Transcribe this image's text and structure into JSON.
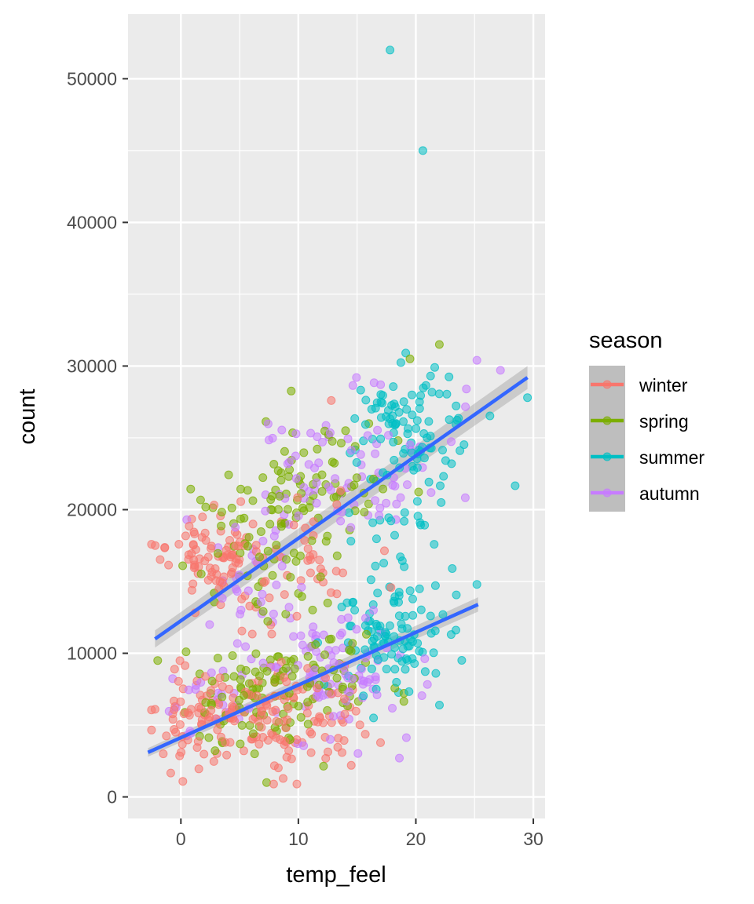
{
  "chart_data": {
    "type": "scatter",
    "xlabel": "temp_feel",
    "ylabel": "count",
    "xlim": [
      -4.5,
      31
    ],
    "ylim": [
      -1500,
      54500
    ],
    "x_ticks": [
      0,
      10,
      20,
      30
    ],
    "y_ticks": [
      0,
      10000,
      20000,
      30000,
      40000,
      50000
    ],
    "x_tick_labels": [
      "0",
      "10",
      "20",
      "30"
    ],
    "y_tick_labels": [
      "0",
      "10000",
      "20000",
      "30000",
      "40000",
      "50000"
    ],
    "grid": true,
    "legend": {
      "title": "season",
      "placement": "right",
      "entries": [
        "winter",
        "spring",
        "summer",
        "autumn"
      ]
    },
    "colors": {
      "winter": "#F8766D",
      "spring": "#7CAE00",
      "summer": "#00BFC4",
      "autumn": "#C77CFF",
      "trend": "#3366FF",
      "panel": "#EBEBEB",
      "band": "#999999"
    },
    "series": [
      {
        "name": "winter",
        "clusters": [
          {
            "cx": 2.5,
            "cy": 17000,
            "sx": 2.0,
            "sy": 1400,
            "n": 75
          },
          {
            "cx": 4.0,
            "cy": 6000,
            "sx": 3.3,
            "sy": 1900,
            "n": 125
          },
          {
            "cx": 11.5,
            "cy": 5200,
            "sx": 2.8,
            "sy": 1900,
            "n": 60
          },
          {
            "cx": 9.5,
            "cy": 16000,
            "sx": 3.2,
            "sy": 2600,
            "n": 50
          }
        ],
        "points": [
          [
            12.8,
            27600
          ],
          [
            -1.5,
            3000
          ],
          [
            -2.2,
            6100
          ],
          [
            14.5,
            2200
          ]
        ]
      },
      {
        "name": "spring",
        "clusters": [
          {
            "cx": 6.5,
            "cy": 6500,
            "sx": 3.3,
            "sy": 1900,
            "n": 85
          },
          {
            "cx": 11.0,
            "cy": 21500,
            "sx": 3.5,
            "sy": 2300,
            "n": 80
          },
          {
            "cx": 6.0,
            "cy": 16500,
            "sx": 3.0,
            "sy": 2300,
            "n": 45
          },
          {
            "cx": 12.5,
            "cy": 9000,
            "sx": 2.8,
            "sy": 1500,
            "n": 40
          }
        ],
        "points": [
          [
            22,
            31500
          ],
          [
            19.5,
            30500
          ],
          [
            7.3,
            1000
          ],
          [
            16,
            26000
          ]
        ]
      },
      {
        "name": "summer",
        "clusters": [
          {
            "cx": 19.5,
            "cy": 26000,
            "sx": 2.4,
            "sy": 1900,
            "n": 90
          },
          {
            "cx": 18.0,
            "cy": 11000,
            "sx": 2.3,
            "sy": 2000,
            "n": 100
          },
          {
            "cx": 18.5,
            "cy": 18500,
            "sx": 2.2,
            "sy": 2600,
            "n": 30
          }
        ],
        "points": [
          [
            17.8,
            52000
          ],
          [
            20.6,
            45000
          ],
          [
            29.5,
            27800
          ],
          [
            25.2,
            14800
          ],
          [
            21.7,
            8600
          ],
          [
            23.1,
            15900
          ],
          [
            16.4,
            5500
          ]
        ]
      },
      {
        "name": "autumn",
        "clusters": [
          {
            "cx": 14.0,
            "cy": 22500,
            "sx": 3.5,
            "sy": 2500,
            "n": 75
          },
          {
            "cx": 13.0,
            "cy": 9000,
            "sx": 3.6,
            "sy": 2200,
            "n": 95
          },
          {
            "cx": 7.5,
            "cy": 15500,
            "sx": 2.5,
            "sy": 2200,
            "n": 30
          },
          {
            "cx": 2.5,
            "cy": 6500,
            "sx": 2.0,
            "sy": 1500,
            "n": 20
          }
        ],
        "points": [
          [
            25.2,
            30400
          ],
          [
            27.2,
            29700
          ],
          [
            17.0,
            28700
          ],
          [
            18.6,
            2700
          ],
          [
            0.5,
            19300
          ],
          [
            24.3,
            28400
          ]
        ]
      }
    ],
    "trend_lines": [
      {
        "x": [
          -2.2,
          29.5
        ],
        "y": [
          11000,
          29200
        ],
        "se_low": [
          10400,
          28400
        ],
        "se_high": [
          11600,
          30000
        ]
      },
      {
        "x": [
          -2.8,
          25.3
        ],
        "y": [
          3100,
          13400
        ],
        "se_low": [
          2800,
          12900
        ],
        "se_high": [
          3400,
          13900
        ]
      }
    ]
  }
}
